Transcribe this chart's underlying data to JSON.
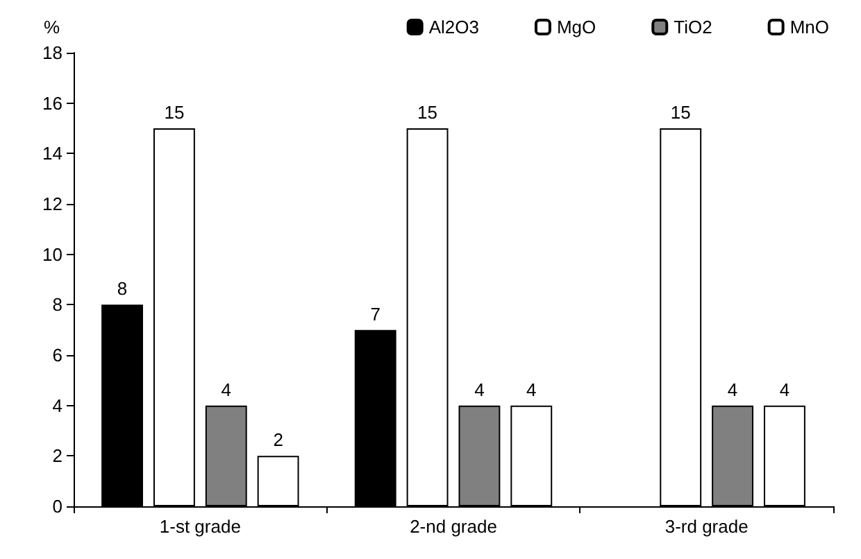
{
  "chart_data": {
    "type": "bar",
    "ylabel": "%",
    "categories": [
      "1-st grade",
      "2-nd grade",
      "3-rd grade"
    ],
    "series": [
      {
        "name": "Al2O3",
        "color": "#000000",
        "values": [
          8,
          7,
          null
        ]
      },
      {
        "name": "MgO",
        "color": "#ffffff",
        "values": [
          15,
          15,
          15
        ]
      },
      {
        "name": "TiO2",
        "color": "#808080",
        "values": [
          4,
          4,
          4
        ]
      },
      {
        "name": "MnO",
        "color": "#ffffff",
        "values": [
          2,
          4,
          4
        ]
      }
    ],
    "ylim": [
      0,
      18
    ],
    "yticks": [
      0,
      2,
      4,
      6,
      8,
      10,
      12,
      14,
      16,
      18
    ],
    "grid": false,
    "legend": "top right",
    "data_labels": true
  }
}
